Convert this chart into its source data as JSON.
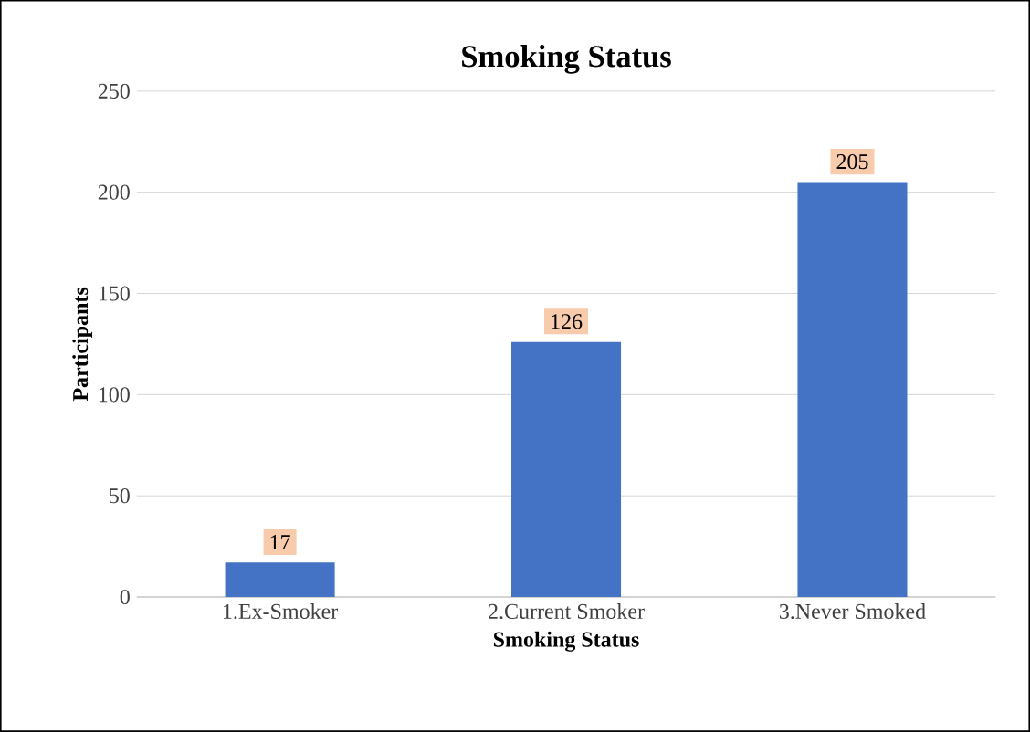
{
  "chart_data": {
    "type": "bar",
    "title": "Smoking Status",
    "xlabel": "Smoking Status",
    "ylabel": "Participants",
    "categories": [
      "1.Ex-Smoker",
      "2.Current Smoker",
      "3.Never Smoked"
    ],
    "values": [
      17,
      126,
      205
    ],
    "color": "#4472c4",
    "ylim": [
      0,
      250
    ],
    "yticks": [
      0,
      50,
      100,
      150,
      200,
      250
    ],
    "grid": "y",
    "data_labels": true
  }
}
